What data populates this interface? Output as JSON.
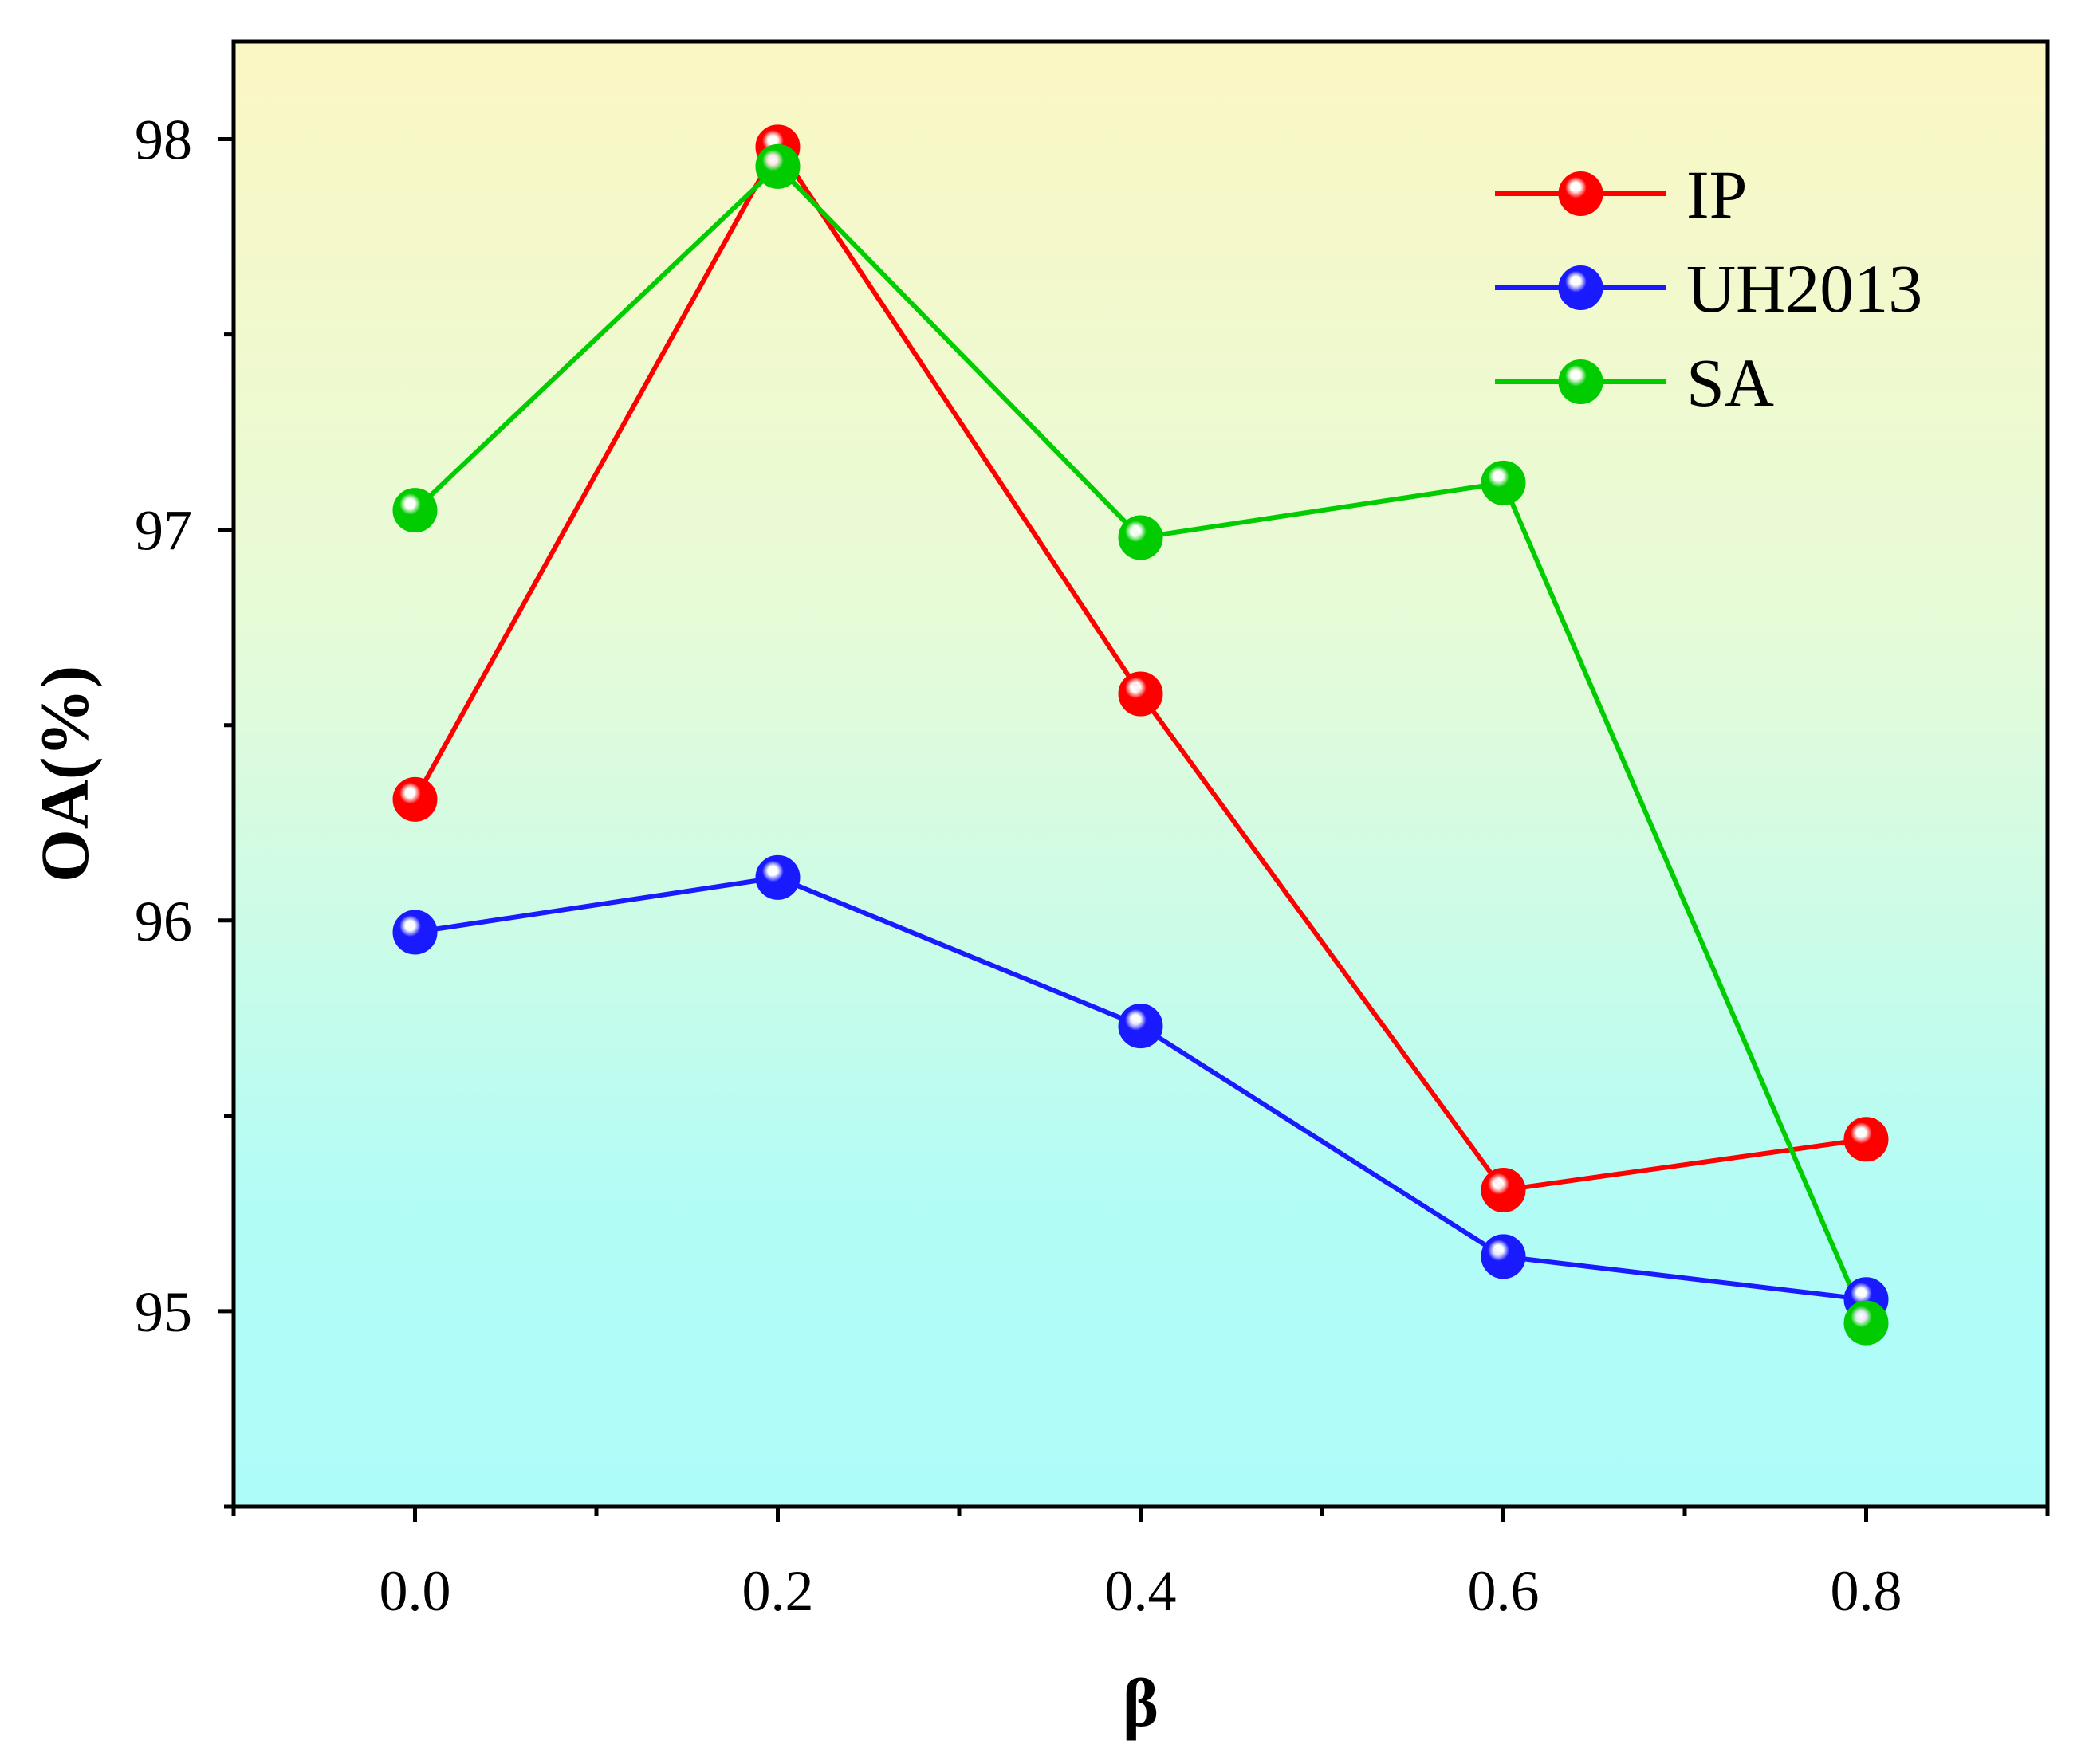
{
  "chart_data": {
    "type": "line",
    "title": "",
    "xlabel": "β",
    "ylabel": "OA(%)",
    "xlim": [
      -0.1,
      0.9
    ],
    "ylim": [
      94.5,
      98.25
    ],
    "x": [
      0.0,
      0.2,
      0.4,
      0.6,
      0.8
    ],
    "x_tick_labels": [
      "0.0",
      "0.2",
      "0.4",
      "0.6",
      "0.8"
    ],
    "y_ticks": [
      95,
      96,
      97,
      98
    ],
    "y_tick_labels": [
      "95",
      "96",
      "97",
      "98"
    ],
    "legend_position": "top-right",
    "background": "vertical gradient: light yellow at top to light cyan at bottom",
    "gradient_colors": [
      "#fbf7c4",
      "#e6fbd8",
      "#b2fcf6",
      "#aefcfa"
    ],
    "series": [
      {
        "name": "IP",
        "color": "#ff0000",
        "values": [
          96.31,
          97.98,
          96.58,
          95.31,
          95.44
        ]
      },
      {
        "name": "UH2013",
        "color": "#1a1aff",
        "values": [
          95.97,
          96.11,
          95.73,
          95.14,
          95.03
        ]
      },
      {
        "name": "SA",
        "color": "#00cc00",
        "values": [
          97.05,
          97.93,
          96.98,
          97.12,
          94.97
        ]
      }
    ]
  }
}
